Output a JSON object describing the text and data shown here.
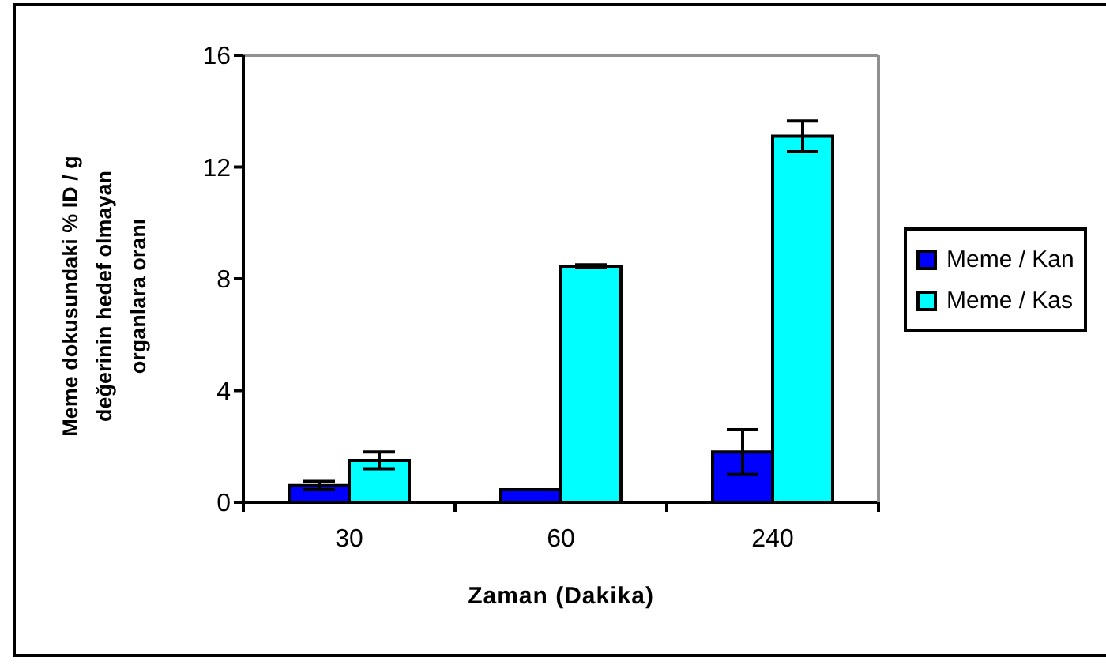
{
  "chart_data": {
    "type": "bar",
    "xlabel": "Zaman (Dakika)",
    "ylabel": "Meme dokusundaki % ID / g değerinin hedef olmayan organlara oranı",
    "categories": [
      "30",
      "60",
      "240"
    ],
    "series": [
      {
        "name": "Meme / Kan",
        "color": "#0000ff",
        "values": [
          0.6,
          0.45,
          1.8
        ],
        "errors": [
          0.15,
          null,
          0.8
        ]
      },
      {
        "name": "Meme / Kas",
        "color": "#00ffff",
        "values": [
          1.5,
          8.45,
          13.1
        ],
        "errors": [
          0.3,
          0.05,
          0.55
        ]
      }
    ],
    "ylim": [
      0,
      16
    ],
    "yticks": [
      0,
      4,
      8,
      12,
      16
    ],
    "legend": "right"
  }
}
